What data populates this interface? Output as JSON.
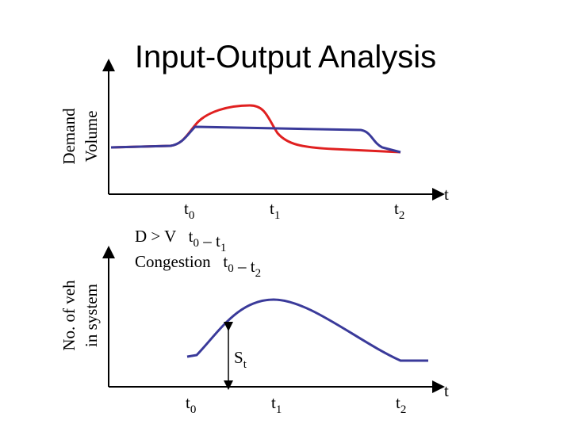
{
  "title": "Input-Output Analysis",
  "top_panel": {
    "y_label": [
      "Demand",
      "Volume"
    ],
    "x_labels": [
      [
        {
          "text": "t",
          "sub": "0"
        }
      ],
      [
        {
          "text": "t",
          "sub": "1"
        }
      ],
      [
        {
          "text": "t",
          "sub": "2"
        }
      ]
    ],
    "axis_end": "t"
  },
  "notes": [
    [
      {
        "text": "D > V   t",
        "sub": "0"
      },
      {
        "text": " – t",
        "sub": "1"
      }
    ],
    [
      {
        "text": "Congestion   t",
        "sub": "0"
      },
      {
        "text": " – t",
        "sub": "2"
      }
    ]
  ],
  "bottom_panel": {
    "y_label": [
      "No. of veh",
      "in system"
    ],
    "x_labels": [
      [
        {
          "text": "t",
          "sub": "0"
        }
      ],
      [
        {
          "text": "t",
          "sub": "1"
        }
      ],
      [
        {
          "text": "t",
          "sub": "2"
        }
      ]
    ],
    "axis_end": "t",
    "marker": [
      {
        "text": "S",
        "sub": "t"
      }
    ]
  }
}
